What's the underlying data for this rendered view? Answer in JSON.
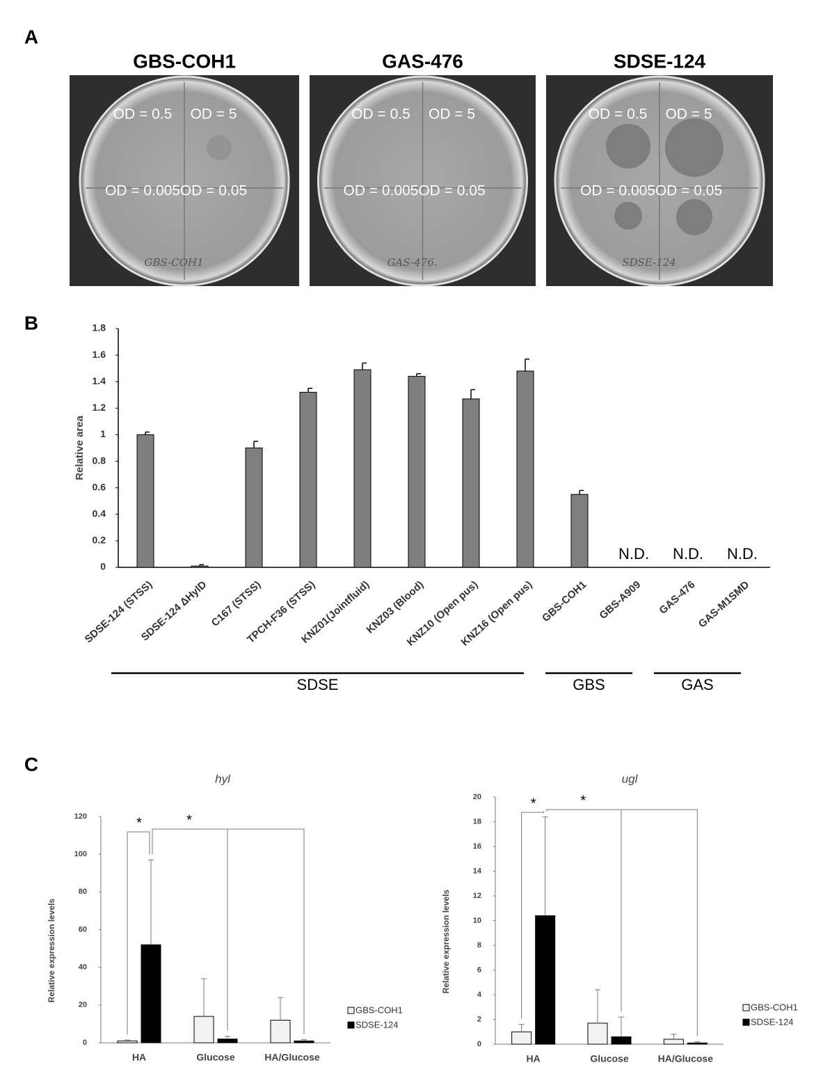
{
  "panels": [
    "A",
    "B",
    "C"
  ],
  "plates": [
    {
      "title": "GBS-COH1",
      "labels": [
        "OD = 0.5",
        "OD = 5",
        "OD = 0.005",
        "OD = 0.05"
      ],
      "handwriting": "GBS-COH1"
    },
    {
      "title": "GAS-476",
      "labels": [
        "OD = 0.5",
        "OD = 5",
        "OD = 0.005",
        "OD = 0.05"
      ],
      "handwriting": "GAS-476."
    },
    {
      "title": "SDSE-124",
      "labels": [
        "OD = 0.5",
        "OD = 5",
        "OD = 0.005",
        "OD = 0.05"
      ],
      "handwriting": "SDSE-124"
    }
  ],
  "chart_data": [
    {
      "type": "bar",
      "y_label": "Relative area",
      "color": "#7f7f7f",
      "categories": [
        "SDSE-124 (STSS)",
        "SDSE-124 ΔHylD",
        "C167 (STSS)",
        "TPCH-F36 (STSS)",
        "KNZ01(Jointfluid)",
        "KNZ03 (Blood)",
        "KNZ10 (Open pus)",
        "KNZ16 (Open pus)",
        "GBS-COH1",
        "GBS-A909",
        "GAS-476",
        "GAS-M1SMD"
      ],
      "values": [
        1.0,
        0.01,
        0.9,
        1.32,
        1.49,
        1.44,
        1.27,
        1.48,
        0.55,
        null,
        null,
        null
      ],
      "errors": [
        0.02,
        0.01,
        0.05,
        0.03,
        0.05,
        0.02,
        0.07,
        0.09,
        0.03,
        null,
        null,
        null
      ],
      "value_labels": [
        null,
        null,
        null,
        null,
        null,
        null,
        null,
        null,
        null,
        "N.D.",
        "N.D.",
        "N.D."
      ],
      "ylim": [
        0,
        1.8
      ],
      "yticks": [
        0,
        0.2,
        0.4,
        0.6,
        0.8,
        1,
        1.2,
        1.4,
        1.6,
        1.8
      ],
      "groups": [
        {
          "name": "SDSE",
          "first": 0,
          "last": 7
        },
        {
          "name": "GBS",
          "first": 8,
          "last": 9
        },
        {
          "name": "GAS",
          "first": 10,
          "last": 11
        }
      ]
    },
    {
      "type": "bar",
      "title": "hyl",
      "y_label": "Relative expression levels",
      "categories": [
        "HA",
        "Glucose",
        "HA/Glucose"
      ],
      "series": [
        {
          "name": "GBS-COH1",
          "color": "#f2f2f2",
          "values": [
            1,
            14,
            12
          ],
          "errors": [
            0.5,
            20,
            12
          ]
        },
        {
          "name": "SDSE-124",
          "color": "#000000",
          "values": [
            52,
            2,
            1
          ],
          "errors": [
            45,
            1.5,
            0.7
          ]
        }
      ],
      "ylim": [
        0,
        120
      ],
      "yticks": [
        0,
        20,
        40,
        60,
        80,
        100,
        120
      ],
      "significance": [
        "*",
        "*"
      ]
    },
    {
      "type": "bar",
      "title": "ugl",
      "y_label": "Relative expression levels",
      "categories": [
        "HA",
        "Glucose",
        "HA/Glucose"
      ],
      "series": [
        {
          "name": "GBS-COH1",
          "color": "#f2f2f2",
          "values": [
            1,
            1.7,
            0.4
          ],
          "errors": [
            0.6,
            2.7,
            0.4
          ]
        },
        {
          "name": "SDSE-124",
          "color": "#000000",
          "values": [
            10.4,
            0.6,
            0.1
          ],
          "errors": [
            8,
            1.6,
            0.1
          ]
        }
      ],
      "ylim": [
        0,
        20
      ],
      "yticks": [
        0,
        2,
        4,
        6,
        8,
        10,
        12,
        14,
        16,
        18,
        20
      ],
      "significance": [
        "*",
        "*"
      ]
    }
  ]
}
